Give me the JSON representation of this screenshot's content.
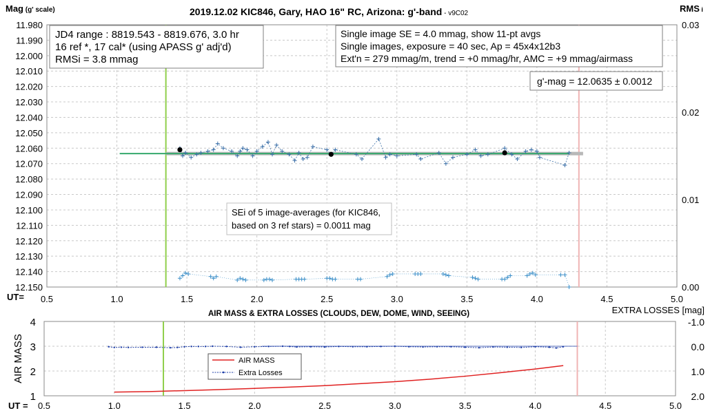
{
  "chart_data": [
    {
      "type": "scatter",
      "title": "2019.12.02 KIC846, Gary, HAO 16\" RC, Arizona: g'-band",
      "title_suffix": "- v9C02",
      "ylabel": "Mag",
      "ylabel_suffix": "(g' scale)",
      "y2label": "RMS",
      "y2label_suffix": "i",
      "xlabel": "UT=",
      "extra_losses_note": "EXTRA LOSSES [mag]",
      "xlim": [
        0.5,
        5.0
      ],
      "xticks": [
        "0.5",
        "1.0",
        "1.5",
        "2.0",
        "2.5",
        "3.0",
        "3.5",
        "4.0",
        "4.5",
        "5.0"
      ],
      "ylim": [
        11.98,
        12.15
      ],
      "yticks": [
        "11.980",
        "11.990",
        "12.000",
        "12.010",
        "12.020",
        "12.030",
        "12.040",
        "12.050",
        "12.060",
        "12.070",
        "12.080",
        "12.090",
        "12.100",
        "12.110",
        "12.120",
        "12.130",
        "12.140",
        "12.150"
      ],
      "y2lim": [
        0.0,
        0.03
      ],
      "y2ticks": [
        "0.03",
        "0.02",
        "0.01",
        "0.00"
      ],
      "grid": true,
      "info_box_left": [
        "JD4 range : 8819.543 - 8819.676,  3.0  hr",
        "16 ref *, 17 cal* (using APASS g' adj'd)",
        "RMSi = 3.8 mmag"
      ],
      "info_box_right": [
        "Single image SE = 4.0 mmag, show  11-pt avgs",
        "Single images, exposure = 40 sec, Ap = 45x4x12b3",
        "Ext'n = 279 mmag/m, trend =  +0 mmag/hr, AMC = +9 mmag/airmass"
      ],
      "gmag_box": "g'-mag = 12.0635 ± 0.0012",
      "sei_box": [
        "SEi of 5 image-averages (for KIC846,",
        "based on 3 ref stars) = 0.0011 mag"
      ],
      "mean_mag": 12.0635,
      "vertical_markers": [
        {
          "x": 1.35,
          "color": "#8fce4a"
        },
        {
          "x": 4.3,
          "color": "#f0b4b4"
        }
      ],
      "series": [
        {
          "kind": "magnitudes",
          "color": "#3a6fa8",
          "x": [
            1.45,
            1.47,
            1.49,
            1.53,
            1.57,
            1.6,
            1.65,
            1.69,
            1.72,
            1.76,
            1.82,
            1.86,
            1.88,
            1.9,
            1.93,
            1.97,
            2.0,
            2.04,
            2.08,
            2.11,
            2.14,
            2.18,
            2.23,
            2.27,
            2.3,
            2.33,
            2.36,
            2.4,
            2.5,
            2.53,
            2.56,
            2.71,
            2.75,
            2.87,
            2.92,
            2.95,
            3.0,
            3.14,
            3.17,
            3.3,
            3.35,
            3.4,
            3.5,
            3.56,
            3.6,
            3.65,
            3.77,
            3.82,
            3.86,
            3.92,
            3.96,
            4.0,
            4.02,
            4.2,
            4.23
          ],
          "y": [
            12.06,
            12.065,
            12.063,
            12.066,
            12.064,
            12.063,
            12.062,
            12.061,
            12.057,
            12.06,
            12.062,
            12.065,
            12.062,
            12.06,
            12.061,
            12.065,
            12.062,
            12.059,
            12.056,
            12.064,
            12.058,
            12.062,
            12.064,
            12.068,
            12.063,
            12.067,
            12.066,
            12.059,
            12.061,
            12.064,
            12.061,
            12.064,
            12.067,
            12.054,
            12.066,
            12.064,
            12.065,
            12.064,
            12.067,
            12.063,
            12.07,
            12.066,
            12.064,
            12.061,
            12.065,
            12.064,
            12.06,
            12.064,
            12.067,
            12.062,
            12.061,
            12.062,
            12.066,
            12.071,
            12.063
          ]
        },
        {
          "kind": "averages",
          "color": "#000000",
          "x": [
            1.45,
            2.53,
            3.77
          ],
          "y": [
            12.061,
            12.064,
            12.063
          ]
        },
        {
          "kind": "rms",
          "color": "#3a8ec8",
          "x": [
            1.45,
            1.47,
            1.49,
            1.51,
            1.67,
            1.69,
            1.71,
            1.86,
            1.88,
            1.9,
            1.92,
            2.05,
            2.07,
            2.09,
            2.11,
            2.28,
            2.3,
            2.32,
            2.34,
            2.5,
            2.52,
            2.54,
            2.56,
            2.72,
            2.74,
            2.93,
            2.95,
            2.97,
            3.13,
            3.15,
            3.17,
            3.33,
            3.35,
            3.37,
            3.54,
            3.56,
            3.58,
            3.75,
            3.77,
            3.79,
            3.81,
            3.93,
            3.95,
            3.97,
            3.99,
            4.17,
            4.2,
            4.23
          ],
          "y": [
            0.001,
            0.0013,
            0.0016,
            0.0015,
            0.0012,
            0.001,
            0.0012,
            0.0008,
            0.001,
            0.0009,
            0.0008,
            0.0008,
            0.0009,
            0.0009,
            0.0008,
            0.0009,
            0.0009,
            0.0009,
            0.0009,
            0.001,
            0.001,
            0.0009,
            0.0009,
            0.0009,
            0.0009,
            0.0012,
            0.0014,
            0.0015,
            0.0015,
            0.0015,
            0.0015,
            0.0015,
            0.0014,
            0.0013,
            0.0011,
            0.001,
            0.0009,
            0.0009,
            0.0009,
            0.0011,
            0.0013,
            0.0013,
            0.0015,
            0.0016,
            0.0014,
            0.0014,
            0.0014,
            0.0
          ]
        }
      ]
    },
    {
      "type": "line",
      "title": "AIR MASS & EXTRA LOSSES (CLOUDS, DEW, DOME, WIND, SEEING)",
      "ylabel": "AIR MASS",
      "xlabel": "UT =",
      "xlim": [
        0.5,
        5.0
      ],
      "xticks": [
        "0.5",
        "1.0",
        "1.5",
        "2.0",
        "2.5",
        "3.0",
        "3.5",
        "4.0",
        "4.5",
        "5.0"
      ],
      "ylim": [
        1,
        4
      ],
      "yticks": [
        "4",
        "3",
        "2",
        "1"
      ],
      "y2lim": [
        -1.0,
        2.0
      ],
      "y2ticks": [
        "-1.0",
        "0.0",
        "1.0",
        "2.0"
      ],
      "grid": true,
      "legend_placement": "center-left",
      "vertical_markers": [
        {
          "x": 1.35,
          "color": "#8fce4a"
        },
        {
          "x": 4.3,
          "color": "#f0b4b4"
        }
      ],
      "series": [
        {
          "name": "AIR MASS",
          "color": "#e02020",
          "x": [
            1.0,
            1.25,
            1.5,
            1.75,
            2.0,
            2.25,
            2.5,
            2.75,
            3.0,
            3.25,
            3.5,
            3.75,
            4.0,
            4.1,
            4.2
          ],
          "y": [
            1.15,
            1.17,
            1.21,
            1.25,
            1.3,
            1.35,
            1.41,
            1.49,
            1.57,
            1.67,
            1.79,
            1.93,
            2.08,
            2.15,
            2.22
          ]
        },
        {
          "name": "Extra Losses",
          "color": "#1f3fa8",
          "x": [
            0.96,
            1.0,
            1.05,
            1.1,
            1.2,
            1.3,
            1.4,
            1.45,
            1.5,
            1.55,
            1.6,
            1.65,
            1.7,
            1.8,
            1.9,
            2.0,
            2.1,
            2.2,
            2.25,
            2.3,
            2.4,
            2.5,
            2.6,
            2.7,
            2.8,
            2.9,
            3.0,
            3.1,
            3.2,
            3.3,
            3.4,
            3.5,
            3.6,
            3.7,
            3.8,
            3.9,
            4.0,
            4.1,
            4.15,
            4.2
          ],
          "y": [
            0.02,
            0.05,
            0.04,
            0.05,
            0.04,
            0.04,
            0.06,
            0.05,
            0.02,
            0.01,
            0.01,
            0.01,
            0.0,
            0.01,
            0.04,
            0.02,
            0.01,
            0.0,
            0.01,
            0.03,
            0.02,
            0.03,
            0.01,
            0.02,
            0.02,
            0.01,
            0.0,
            0.02,
            0.03,
            0.02,
            0.02,
            0.04,
            0.06,
            0.03,
            0.04,
            0.05,
            0.02,
            0.04,
            0.07,
            0.02
          ]
        }
      ]
    }
  ]
}
